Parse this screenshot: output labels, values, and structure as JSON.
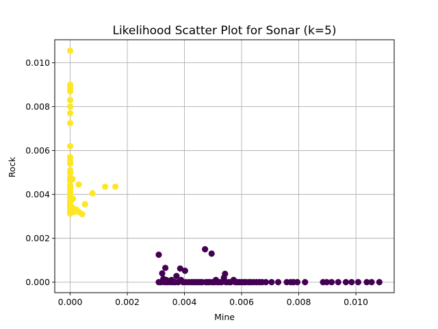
{
  "chart_data": {
    "type": "scatter",
    "title": "Likelihood Scatter Plot for Sonar (k=5)",
    "xlabel": "Mine",
    "ylabel": "Rock",
    "xlim": [
      -0.00054,
      0.01134
    ],
    "ylim": [
      -0.00048,
      0.01105
    ],
    "xticks": [
      0.0,
      0.002,
      0.004,
      0.006,
      0.008,
      0.01
    ],
    "yticks": [
      0.0,
      0.002,
      0.004,
      0.006,
      0.008,
      0.01
    ],
    "tick_format_decimals": 3,
    "grid": true,
    "colors": {
      "yellow": "#fde725",
      "purple": "#440154"
    },
    "series": [
      {
        "color": "yellow",
        "points": [
          [
            0.0,
            0.01055
          ],
          [
            0.0,
            0.009
          ],
          [
            0.0,
            0.00885
          ],
          [
            0.0,
            0.0087
          ],
          [
            0.0,
            0.0083
          ],
          [
            0.0,
            0.008
          ],
          [
            0.0,
            0.0077
          ],
          [
            0.0,
            0.00725
          ],
          [
            0.0,
            0.0062
          ],
          [
            0.0,
            0.0057
          ],
          [
            0.0,
            0.00555
          ],
          [
            0.0,
            0.0054
          ],
          [
            0.0,
            0.0051
          ],
          [
            0.0,
            0.005
          ],
          [
            0.0,
            0.0048
          ],
          [
            0.0,
            0.0047
          ],
          [
            0.0,
            0.0046
          ],
          [
            0.0,
            0.0044
          ],
          [
            0.0,
            0.0043
          ],
          [
            0.0,
            0.0042
          ],
          [
            0.0,
            0.0041
          ],
          [
            0.0,
            0.004
          ],
          [
            0.0,
            0.0039
          ],
          [
            0.0,
            0.0038
          ],
          [
            0.0,
            0.0037
          ],
          [
            0.0,
            0.0036
          ],
          [
            0.0,
            0.0035
          ],
          [
            0.0,
            0.0034
          ],
          [
            0.0,
            0.0033
          ],
          [
            0.0,
            0.0032
          ],
          [
            0.0,
            0.00312
          ],
          [
            8e-05,
            0.0034
          ],
          [
            0.0001,
            0.0033
          ],
          [
            0.00012,
            0.0032
          ],
          [
            8e-05,
            0.0047
          ],
          [
            0.0001,
            0.0038
          ],
          [
            0.00022,
            0.0033
          ],
          [
            0.0003,
            0.00445
          ],
          [
            0.0003,
            0.0032
          ],
          [
            0.00042,
            0.0031
          ],
          [
            0.00052,
            0.00355
          ],
          [
            0.00078,
            0.00405
          ],
          [
            0.00122,
            0.00435
          ],
          [
            0.00158,
            0.00435
          ]
        ]
      },
      {
        "color": "purple",
        "points": [
          [
            0.0031,
            0.00125
          ],
          [
            0.0031,
            0.0
          ],
          [
            0.00318,
            0.0
          ],
          [
            0.00322,
            0.0004
          ],
          [
            0.00326,
            0.00015
          ],
          [
            0.0033,
            0.0
          ],
          [
            0.00333,
            0.00065
          ],
          [
            0.00336,
            0.0001
          ],
          [
            0.0034,
            0.0
          ],
          [
            0.00345,
            5e-05
          ],
          [
            0.0035,
            0.0
          ],
          [
            0.00355,
            0.0001
          ],
          [
            0.0036,
            0.0
          ],
          [
            0.00368,
            0.0
          ],
          [
            0.00372,
            0.00028
          ],
          [
            0.00378,
            0.0
          ],
          [
            0.00385,
            0.00062
          ],
          [
            0.00388,
            0.0001
          ],
          [
            0.00395,
            0.0
          ],
          [
            0.00402,
            0.00052
          ],
          [
            0.00405,
            0.0
          ],
          [
            0.00415,
            0.0
          ],
          [
            0.00425,
            0.0
          ],
          [
            0.00432,
            0.0
          ],
          [
            0.0044,
            0.0
          ],
          [
            0.00448,
            0.0
          ],
          [
            0.00455,
            0.0
          ],
          [
            0.00462,
            0.0
          ],
          [
            0.00472,
            0.0015
          ],
          [
            0.00475,
            0.0
          ],
          [
            0.00482,
            0.0
          ],
          [
            0.00488,
            0.0
          ],
          [
            0.00495,
            0.0013
          ],
          [
            0.00498,
            0.0
          ],
          [
            0.00505,
            0.0
          ],
          [
            0.0051,
            0.0001
          ],
          [
            0.00515,
            0.0
          ],
          [
            0.00522,
            0.0
          ],
          [
            0.0053,
            0.0
          ],
          [
            0.00538,
            0.0002
          ],
          [
            0.00542,
            0.00038
          ],
          [
            0.00545,
            0.0
          ],
          [
            0.00555,
            0.0
          ],
          [
            0.00562,
            0.0
          ],
          [
            0.00572,
            0.0001
          ],
          [
            0.00578,
            0.0
          ],
          [
            0.00585,
            0.0
          ],
          [
            0.00592,
            0.0
          ],
          [
            0.006,
            0.0
          ],
          [
            0.00608,
            0.0
          ],
          [
            0.00615,
            0.0
          ],
          [
            0.00625,
            0.0
          ],
          [
            0.00632,
            0.0
          ],
          [
            0.00642,
            0.0
          ],
          [
            0.00652,
            0.0
          ],
          [
            0.00662,
            0.0
          ],
          [
            0.00672,
            0.0
          ],
          [
            0.00685,
            0.0
          ],
          [
            0.00705,
            0.0
          ],
          [
            0.00728,
            0.0
          ],
          [
            0.00758,
            0.0
          ],
          [
            0.00772,
            0.0
          ],
          [
            0.00782,
            0.0
          ],
          [
            0.00795,
            0.0
          ],
          [
            0.00822,
            0.0
          ],
          [
            0.00885,
            0.0
          ],
          [
            0.00898,
            0.0
          ],
          [
            0.00915,
            0.0
          ],
          [
            0.00938,
            0.0
          ],
          [
            0.00965,
            0.0
          ],
          [
            0.00985,
            0.0
          ],
          [
            0.01008,
            0.0
          ],
          [
            0.01038,
            0.0
          ],
          [
            0.01055,
            0.0
          ],
          [
            0.01082,
            0.0
          ]
        ]
      }
    ]
  }
}
